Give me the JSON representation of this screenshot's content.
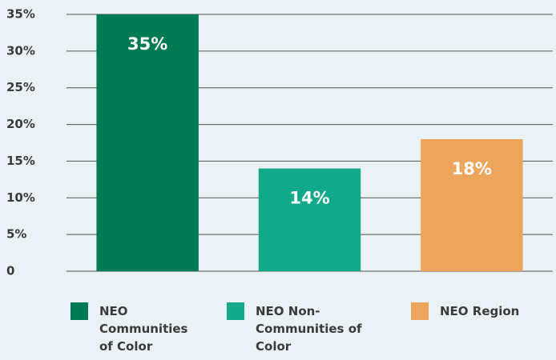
{
  "chart_data": {
    "type": "bar",
    "categories": [
      "NEO Communities of Color",
      "NEO Non-Communities of Color",
      "NEO Region"
    ],
    "values": [
      35,
      14,
      18
    ],
    "value_labels": [
      "35%",
      "14%",
      "18%"
    ],
    "colors": [
      "#007a53",
      "#12a98a",
      "#eba65c"
    ],
    "ylim": [
      0,
      35
    ],
    "yticks": [
      0,
      {
        "value": 5,
        "label": "5%"
      },
      {
        "value": 10,
        "label": "10%"
      },
      {
        "value": 15,
        "label": "15%"
      },
      {
        "value": 20,
        "label": "20%"
      },
      {
        "value": 25,
        "label": "25%"
      },
      {
        "value": 30,
        "label": "30%"
      },
      {
        "value": 35,
        "label": "35%"
      }
    ],
    "grid": true
  }
}
